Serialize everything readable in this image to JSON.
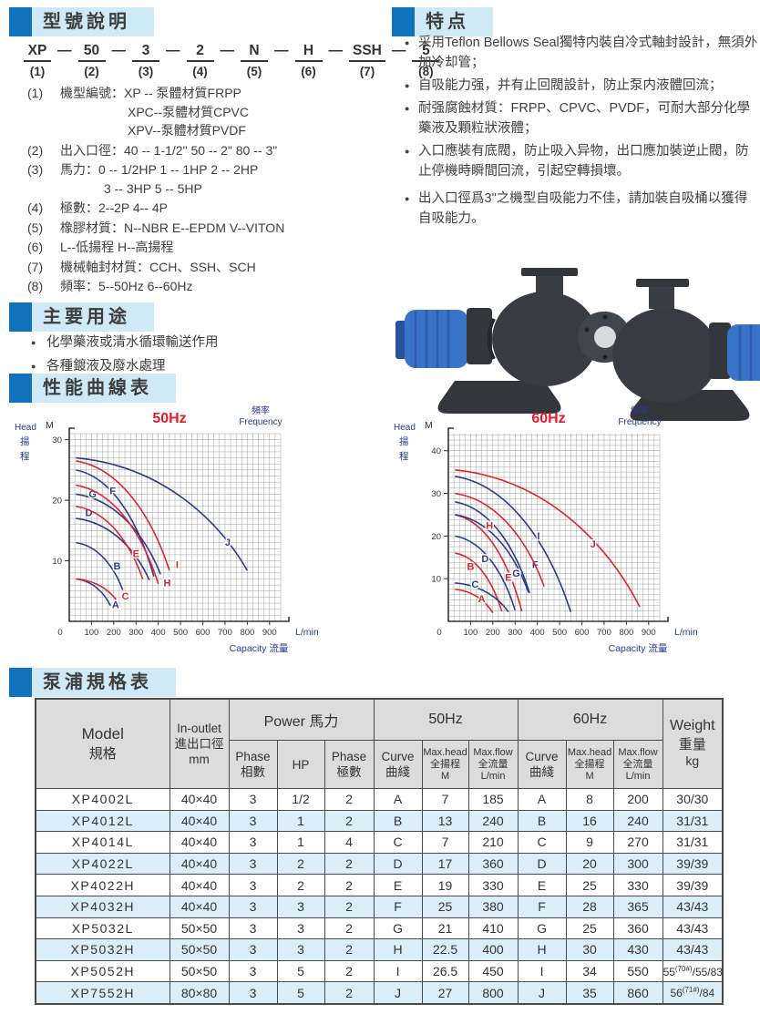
{
  "colors": {
    "accent": "#1273bd",
    "band": "#cfe9f6",
    "table_header_bg": "#dcdcdc",
    "row_alt_bg": "#d9eef9",
    "curve_red": "#e0242b",
    "curve_blue": "#2b3990",
    "label_blue": "#2b3990",
    "title_red": "#e8192c"
  },
  "sections": {
    "model_explain": {
      "title": "型號說明",
      "code": [
        {
          "c": "XP",
          "n": "(1)"
        },
        {
          "c": "50",
          "n": "(2)"
        },
        {
          "c": "3",
          "n": "(3)"
        },
        {
          "c": "2",
          "n": "(4)"
        },
        {
          "c": "N",
          "n": "(5)"
        },
        {
          "c": "H",
          "n": "(6)"
        },
        {
          "c": "SSH",
          "n": "(7)"
        },
        {
          "c": "5",
          "n": "(8)"
        }
      ],
      "items": [
        {
          "num": "(1)",
          "lines": [
            "機型編號：XP -- 泵體材質FRPP",
            "XPC--泵體材質CPVC",
            "XPV--泵體材質PVDF"
          ]
        },
        {
          "num": "(2)",
          "lines": [
            "出入口徑：40 -- 1-1/2\"  50 -- 2\"  80 -- 3\""
          ]
        },
        {
          "num": "(3)",
          "lines": [
            "馬力：0 -- 1/2HP   1 -- 1HP   2 -- 2HP",
            "3 -- 3HP   5 -- 5HP"
          ]
        },
        {
          "num": "(4)",
          "lines": [
            "極數：2--2P   4-- 4P"
          ]
        },
        {
          "num": "(5)",
          "lines": [
            "橡膠材質：N--NBR   E--EPDM   V--VITON"
          ]
        },
        {
          "num": "(6)",
          "lines": [
            "L--低揚程  H--高揚程"
          ]
        },
        {
          "num": "(7)",
          "lines": [
            "機械軸封材質：CCH、SSH、SCH"
          ]
        },
        {
          "num": "(8)",
          "lines": [
            "頻率：5--50Hz   6--60Hz"
          ]
        }
      ]
    },
    "features": {
      "title": "特点",
      "bullets": [
        "采用Teflon Bellows Seal獨特内裝自冷式軸封設計，無須外加冷却管；",
        "自吸能力强，并有止回閥設計，防止泵内液體回流；",
        "耐强腐蝕材質：FRPP、CPVC、PVDF，可耐大部分化學藥液及顆粒狀液體；",
        "入口應裝有底閥，防止吸入异物，出口應加裝逆止閥，防止停機時瞬間回流，引起空轉損壞。",
        "出入口徑爲3\"之機型自吸能力不佳，請加裝自吸桶以獲得自吸能力。"
      ]
    },
    "main_uses": {
      "title": "主要用途",
      "bullets": [
        "化學藥液或清水循環輸送作用",
        "各種鍍液及廢水處理"
      ]
    },
    "curves_section": {
      "title": "性能曲線表"
    },
    "spec": {
      "title": "泵浦規格表",
      "header": {
        "model_en": "Model",
        "model_zh": "規格",
        "inout_en": "In-outlet",
        "inout_zh": "進出口徑",
        "inout_unit": "mm",
        "power": "Power 馬力",
        "phase_en": "Phase",
        "phase_zh": "相數",
        "hp": "HP",
        "pole_en": "Phase",
        "pole_zh": "極數",
        "hz50": "50Hz",
        "hz60": "60Hz",
        "curve_en": "Curve",
        "curve_zh": "曲綫",
        "maxhead_en": "Max.head",
        "maxhead_zh": "全揚程",
        "maxhead_unit": "M",
        "maxflow_en": "Max.flow",
        "maxflow_zh": "全流量",
        "maxflow_unit": "L/min",
        "weight_en": "Weight",
        "weight_zh": "重量",
        "weight_unit": "kg"
      },
      "rows": [
        [
          "XP4002L",
          "40×40",
          "3",
          "1/2",
          "2",
          "A",
          "7",
          "185",
          "A",
          "8",
          "200",
          [
            "30/30",
            "",
            ""
          ]
        ],
        [
          "XP4012L",
          "40×40",
          "3",
          "1",
          "2",
          "B",
          "13",
          "240",
          "B",
          "16",
          "240",
          [
            "31/31",
            "",
            ""
          ]
        ],
        [
          "XP4014L",
          "40×40",
          "3",
          "1",
          "4",
          "C",
          "7",
          "210",
          "C",
          "9",
          "270",
          [
            "31/31",
            "",
            ""
          ]
        ],
        [
          "XP4022L",
          "40×40",
          "3",
          "2",
          "2",
          "D",
          "17",
          "360",
          "D",
          "20",
          "300",
          [
            "39/39",
            "",
            ""
          ]
        ],
        [
          "XP4022H",
          "40×40",
          "3",
          "2",
          "2",
          "E",
          "19",
          "330",
          "E",
          "25",
          "330",
          [
            "39/39",
            "",
            ""
          ]
        ],
        [
          "XP4032H",
          "40×40",
          "3",
          "3",
          "2",
          "F",
          "25",
          "380",
          "F",
          "28",
          "365",
          [
            "43/43",
            "",
            ""
          ]
        ],
        [
          "XP5032L",
          "50×50",
          "3",
          "3",
          "2",
          "G",
          "21",
          "410",
          "G",
          "25",
          "360",
          [
            "43/43",
            "",
            ""
          ]
        ],
        [
          "XP5032H",
          "50×50",
          "3",
          "3",
          "2",
          "H",
          "22.5",
          "400",
          "H",
          "30",
          "430",
          [
            "43/43",
            "",
            ""
          ]
        ],
        [
          "XP5052H",
          "50×50",
          "3",
          "5",
          "2",
          "I",
          "26.5",
          "450",
          "I",
          "34",
          "550",
          [
            "55",
            "(70#)",
            "/55/83"
          ]
        ],
        [
          "XP7552H",
          "80×80",
          "3",
          "5",
          "2",
          "J",
          "27",
          "800",
          "J",
          "35",
          "860",
          [
            "56",
            "(71#)",
            "/84"
          ]
        ]
      ]
    }
  },
  "chart_data": [
    {
      "type": "line",
      "title": "50Hz",
      "freq_zh": "頻率",
      "freq_en": "Frequency",
      "head_en": "Head",
      "head_zh1": "揚",
      "head_zh2": "程",
      "y_unit": "M",
      "x_unit": "L/min",
      "cap_en": "Capacity",
      "cap_zh": "流量",
      "xlabel": "Capacity 流量",
      "ylabel": "Head 揚程 M",
      "xlim": [
        0,
        950
      ],
      "ylim": [
        0,
        31
      ],
      "x_ticks": [
        0,
        100,
        200,
        300,
        400,
        500,
        600,
        700,
        800,
        900
      ],
      "y_ticks": [
        10,
        20,
        30
      ],
      "grid": true,
      "legend_position": "none",
      "series": [
        {
          "name": "A",
          "color": "blue",
          "max_head": 7,
          "max_flow": 185,
          "start": [
            30,
            7
          ],
          "end": [
            185,
            2.6
          ],
          "label": [
            208,
            2.2
          ]
        },
        {
          "name": "B",
          "color": "blue",
          "max_head": 13,
          "max_flow": 240,
          "start": [
            30,
            13
          ],
          "end": [
            240,
            5.2
          ],
          "label": [
            215,
            8.6
          ]
        },
        {
          "name": "C",
          "color": "red",
          "max_head": 7,
          "max_flow": 210,
          "start": [
            30,
            7
          ],
          "end": [
            210,
            3.6
          ],
          "label": [
            252,
            3.6
          ]
        },
        {
          "name": "D",
          "color": "blue",
          "max_head": 17,
          "max_flow": 360,
          "start": [
            30,
            17
          ],
          "end": [
            360,
            6.8
          ],
          "label": [
            88,
            17.4
          ]
        },
        {
          "name": "E",
          "color": "red",
          "max_head": 19,
          "max_flow": 330,
          "start": [
            30,
            19
          ],
          "end": [
            330,
            7.0
          ],
          "label": [
            300,
            10.6
          ]
        },
        {
          "name": "F",
          "color": "blue",
          "max_head": 25,
          "max_flow": 380,
          "start": [
            30,
            25
          ],
          "end": [
            380,
            7.4
          ],
          "label": [
            195,
            21.0
          ]
        },
        {
          "name": "G",
          "color": "blue",
          "max_head": 21,
          "max_flow": 410,
          "start": [
            30,
            21
          ],
          "end": [
            410,
            7.8
          ],
          "label": [
            105,
            20.5
          ]
        },
        {
          "name": "H",
          "color": "red",
          "max_head": 22.5,
          "max_flow": 400,
          "start": [
            30,
            22.5
          ],
          "end": [
            400,
            6.2
          ],
          "label": [
            440,
            5.8
          ]
        },
        {
          "name": "I",
          "color": "red",
          "max_head": 26.5,
          "max_flow": 450,
          "start": [
            30,
            26.5
          ],
          "end": [
            450,
            8.4
          ],
          "label": [
            485,
            8.8
          ]
        },
        {
          "name": "J",
          "color": "blue",
          "max_head": 27,
          "max_flow": 800,
          "start": [
            30,
            27
          ],
          "end": [
            800,
            8.4
          ],
          "label": [
            712,
            12.5
          ]
        }
      ]
    },
    {
      "type": "line",
      "title": "60Hz",
      "freq_zh": "頻率",
      "freq_en": "Frequency",
      "head_en": "Head",
      "head_zh1": "揚",
      "head_zh2": "程",
      "y_unit": "M",
      "x_unit": "L/min",
      "cap_en": "Capacity",
      "cap_zh": "流量",
      "xlabel": "Capacity 流量",
      "ylabel": "Head 揚程 M",
      "xlim": [
        0,
        950
      ],
      "ylim": [
        0,
        44
      ],
      "x_ticks": [
        0,
        100,
        200,
        300,
        400,
        500,
        600,
        700,
        800,
        900
      ],
      "y_ticks": [
        10,
        20,
        30,
        40
      ],
      "grid": true,
      "legend_position": "none",
      "series": [
        {
          "name": "A",
          "color": "red",
          "max_head": 8,
          "max_flow": 200,
          "start": [
            30,
            7.5
          ],
          "end": [
            200,
            2.0
          ],
          "label": [
            150,
            4.5
          ]
        },
        {
          "name": "B",
          "color": "red",
          "max_head": 16,
          "max_flow": 240,
          "start": [
            30,
            16
          ],
          "end": [
            240,
            2.4
          ],
          "label": [
            100,
            12.1
          ]
        },
        {
          "name": "C",
          "color": "blue",
          "max_head": 9,
          "max_flow": 270,
          "start": [
            30,
            9
          ],
          "end": [
            270,
            2.2
          ],
          "label": [
            120,
            7.9
          ]
        },
        {
          "name": "D",
          "color": "blue",
          "max_head": 20,
          "max_flow": 300,
          "start": [
            30,
            20
          ],
          "end": [
            300,
            2.6
          ],
          "label": [
            165,
            13.9
          ]
        },
        {
          "name": "E",
          "color": "red",
          "max_head": 25,
          "max_flow": 330,
          "start": [
            30,
            25
          ],
          "end": [
            330,
            2.4
          ],
          "label": [
            270,
            9.5
          ]
        },
        {
          "name": "F",
          "color": "blue",
          "max_head": 28,
          "max_flow": 365,
          "start": [
            30,
            28
          ],
          "end": [
            365,
            6.6
          ],
          "label": [
            390,
            12.5
          ]
        },
        {
          "name": "G",
          "color": "blue",
          "max_head": 25,
          "max_flow": 360,
          "start": [
            30,
            25
          ],
          "end": [
            360,
            6.8
          ],
          "label": [
            305,
            10.5
          ]
        },
        {
          "name": "H",
          "color": "red",
          "max_head": 30,
          "max_flow": 430,
          "start": [
            30,
            30
          ],
          "end": [
            430,
            8.2
          ],
          "label": [
            185,
            21.7
          ]
        },
        {
          "name": "I",
          "color": "blue",
          "max_head": 34,
          "max_flow": 550,
          "start": [
            30,
            34
          ],
          "end": [
            550,
            2.2
          ],
          "label": [
            405,
            19.2
          ]
        },
        {
          "name": "J",
          "color": "red",
          "max_head": 35,
          "max_flow": 860,
          "start": [
            30,
            35.5
          ],
          "end": [
            860,
            3.4
          ],
          "label": [
            650,
            17.3
          ]
        }
      ]
    }
  ]
}
